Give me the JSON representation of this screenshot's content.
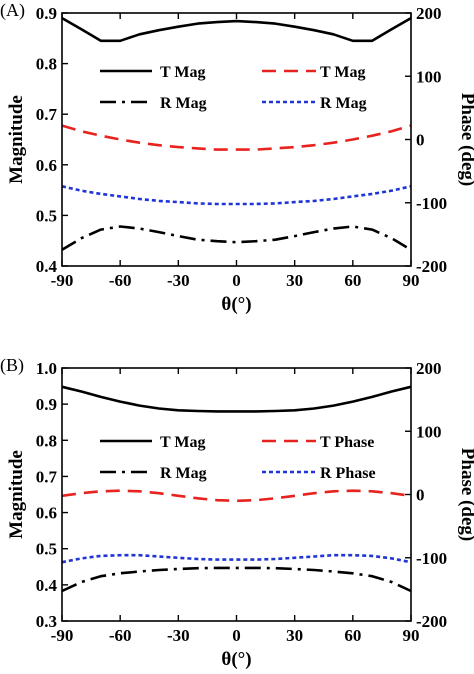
{
  "chart_data": [
    {
      "type": "line",
      "panel_label": "(A)",
      "xlabel": "θ(°)",
      "ylabel": "Magnitude",
      "y2label": "Phase (deg)",
      "xlim": [
        -90,
        90
      ],
      "ylim": [
        0.4,
        0.9
      ],
      "y2lim": [
        -200,
        200
      ],
      "xticks": [
        "-90",
        "-60",
        "-30",
        "0",
        "30",
        "60",
        "90"
      ],
      "yticks": [
        "0.4",
        "0.5",
        "0.6",
        "0.7",
        "0.8",
        "0.9"
      ],
      "y2ticks": [
        "-200",
        "-100",
        "0",
        "100",
        "200"
      ],
      "grid": false,
      "legend_position": "top-center",
      "x": [
        -90,
        -80,
        -70,
        -60,
        -50,
        -40,
        -30,
        -20,
        -10,
        0,
        10,
        20,
        30,
        40,
        50,
        60,
        70,
        80,
        90
      ],
      "series": [
        {
          "name": "T Mag",
          "axis": "left",
          "color": "#000000",
          "style": "solid",
          "values": [
            0.89,
            0.868,
            0.845,
            0.845,
            0.858,
            0.866,
            0.873,
            0.879,
            0.882,
            0.884,
            0.882,
            0.879,
            0.873,
            0.866,
            0.858,
            0.845,
            0.845,
            0.868,
            0.89
          ]
        },
        {
          "name": "R Mag",
          "axis": "left",
          "color": "#000000",
          "style": "dashdot",
          "values": [
            0.432,
            0.455,
            0.472,
            0.478,
            0.474,
            0.467,
            0.459,
            0.452,
            0.449,
            0.447,
            0.449,
            0.452,
            0.459,
            0.467,
            0.474,
            0.478,
            0.472,
            0.455,
            0.432
          ]
        },
        {
          "name": "T Mag",
          "axis": "right",
          "color": "#e8231f",
          "style": "dashed",
          "values": [
            22,
            13,
            6,
            0,
            -5,
            -9,
            -12,
            -14,
            -16,
            -16,
            -16,
            -14,
            -12,
            -9,
            -5,
            0,
            6,
            13,
            22
          ]
        },
        {
          "name": "R Mag",
          "axis": "right",
          "color": "#1f35d6",
          "style": "dotted",
          "values": [
            -74,
            -81,
            -86,
            -90,
            -94,
            -97,
            -99,
            -101,
            -102,
            -102,
            -102,
            -101,
            -99,
            -97,
            -94,
            -90,
            -86,
            -81,
            -74
          ]
        }
      ]
    },
    {
      "type": "line",
      "panel_label": "(B)",
      "xlabel": "θ(°)",
      "ylabel": "Magnitude",
      "y2label": "Phase (deg)",
      "xlim": [
        -90,
        90
      ],
      "ylim": [
        0.3,
        1.0
      ],
      "y2lim": [
        -200,
        200
      ],
      "xticks": [
        "-90",
        "-60",
        "-30",
        "0",
        "30",
        "60",
        "90"
      ],
      "yticks": [
        "0.3",
        "0.4",
        "0.5",
        "0.6",
        "0.7",
        "0.8",
        "0.9",
        "1.0"
      ],
      "y2ticks": [
        "-200",
        "-100",
        "0",
        "100",
        "200"
      ],
      "grid": false,
      "legend_position": "center",
      "x": [
        -90,
        -80,
        -70,
        -60,
        -50,
        -40,
        -30,
        -20,
        -10,
        0,
        10,
        20,
        30,
        40,
        50,
        60,
        70,
        80,
        90
      ],
      "series": [
        {
          "name": "T Mag",
          "axis": "left",
          "color": "#000000",
          "style": "solid",
          "values": [
            0.948,
            0.935,
            0.92,
            0.907,
            0.896,
            0.888,
            0.883,
            0.881,
            0.88,
            0.88,
            0.88,
            0.881,
            0.883,
            0.888,
            0.896,
            0.907,
            0.92,
            0.935,
            0.948
          ]
        },
        {
          "name": "R Mag",
          "axis": "left",
          "color": "#000000",
          "style": "dashdot",
          "values": [
            0.383,
            0.408,
            0.424,
            0.432,
            0.437,
            0.441,
            0.444,
            0.446,
            0.447,
            0.447,
            0.447,
            0.446,
            0.444,
            0.441,
            0.437,
            0.432,
            0.424,
            0.408,
            0.383
          ]
        },
        {
          "name": "T Phase",
          "axis": "right",
          "color": "#e8231f",
          "style": "dashed",
          "values": [
            -2,
            2,
            5,
            6,
            5,
            2,
            -2,
            -6,
            -9,
            -10,
            -9,
            -6,
            -2,
            2,
            5,
            6,
            5,
            2,
            -2
          ]
        },
        {
          "name": "R Phase",
          "axis": "right",
          "color": "#1f35d6",
          "style": "dotted",
          "values": [
            -107,
            -101,
            -97,
            -96,
            -96,
            -98,
            -100,
            -102,
            -103,
            -103,
            -103,
            -102,
            -100,
            -98,
            -96,
            -96,
            -97,
            -101,
            -107
          ]
        }
      ]
    }
  ]
}
